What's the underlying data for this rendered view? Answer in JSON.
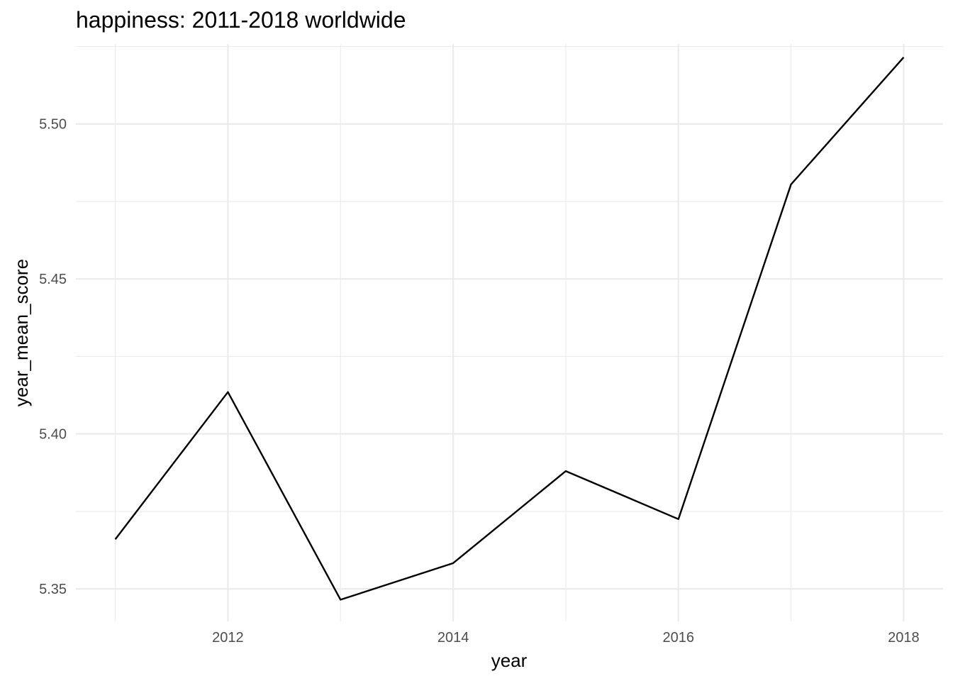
{
  "chart_data": {
    "type": "line",
    "title": "happiness: 2011-2018 worldwide",
    "xlabel": "year",
    "ylabel": "year_mean_score",
    "x": [
      2011,
      2012,
      2013,
      2014,
      2015,
      2016,
      2017,
      2018
    ],
    "series": [
      {
        "values": [
          5.366,
          5.4135,
          5.3465,
          5.3583,
          5.388,
          5.3725,
          5.4805,
          5.5215
        ]
      }
    ],
    "xlim": [
      2010.65,
      2018.35
    ],
    "ylim": [
      5.3395,
      5.5258
    ],
    "x_ticks": [
      2012,
      2014,
      2016,
      2018
    ],
    "x_tick_labels": [
      "2012",
      "2014",
      "2016",
      "2018"
    ],
    "x_minor_ticks": [
      2011,
      2013,
      2015,
      2017
    ],
    "y_ticks": [
      5.35,
      5.4,
      5.45,
      5.5
    ],
    "y_tick_labels": [
      "5.35",
      "5.40",
      "5.45",
      "5.50"
    ],
    "y_minor_ticks": [
      5.375,
      5.425,
      5.475,
      5.525
    ],
    "grid": true,
    "line_color": "#000000",
    "grid_color": "#ebebeb"
  }
}
